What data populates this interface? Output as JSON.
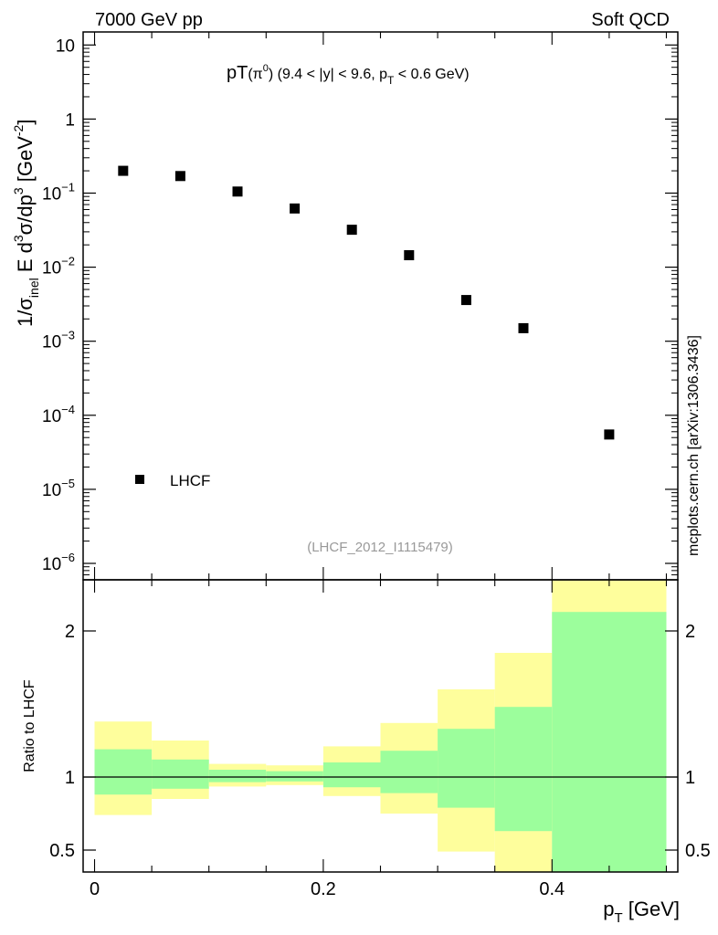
{
  "header": {
    "left": "7000 GeV pp",
    "right": "Soft QCD"
  },
  "title": {
    "main": "pT",
    "particle": "(π",
    "particle_sup": "0",
    "particle_close": ")",
    "cuts_a": "(9.4 < |y| < 9.6, p",
    "cuts_sub": "T",
    "cuts_b": " < 0.6 GeV)"
  },
  "y_axis_label": {
    "a": "1/σ",
    "sub": "inel",
    "b": " E d",
    "sup1": "3",
    "c": "σ/dp",
    "sup2": "3",
    "d": " [GeV",
    "sup3": "-2",
    "e": "]"
  },
  "ratio_axis_label": "Ratio to LHCF",
  "x_axis_label": {
    "main": "p",
    "sub": "T",
    "unit": " [GeV]"
  },
  "side_label": "mcplots.cern.ch [arXiv:1306.3436]",
  "analysis_id": "(LHCF_2012_I1115479)",
  "legend": {
    "label": "LHCF"
  },
  "chart_data": [
    {
      "type": "scatter",
      "panel": "main",
      "y_scale": "log",
      "ylim": [
        6e-07,
        15
      ],
      "xlim": [
        -0.01,
        0.51
      ],
      "x": [
        0.025,
        0.075,
        0.125,
        0.175,
        0.225,
        0.275,
        0.325,
        0.375,
        0.45
      ],
      "series": [
        {
          "name": "LHCF",
          "values": [
            0.2,
            0.17,
            0.105,
            0.062,
            0.032,
            0.0145,
            0.0036,
            0.0015,
            5.5e-05
          ]
        }
      ],
      "y_ticks": [
        {
          "value": 1e-06,
          "base": "10",
          "exp": "−6"
        },
        {
          "value": 1e-05,
          "base": "10",
          "exp": "−5"
        },
        {
          "value": 0.0001,
          "base": "10",
          "exp": "−4"
        },
        {
          "value": 0.001,
          "base": "10",
          "exp": "−3"
        },
        {
          "value": 0.01,
          "base": "10",
          "exp": "−2"
        },
        {
          "value": 0.1,
          "base": "10",
          "exp": "−1"
        },
        {
          "value": 1,
          "base": "1",
          "exp": ""
        },
        {
          "value": 10,
          "base": "10",
          "exp": ""
        }
      ]
    },
    {
      "type": "area",
      "panel": "ratio",
      "ylim": [
        0.35,
        2.35
      ],
      "bin_edges": [
        0.0,
        0.05,
        0.1,
        0.15,
        0.2,
        0.25,
        0.3,
        0.35,
        0.4,
        0.5
      ],
      "stat_band": {
        "color": "#9cfe9c",
        "lo": [
          0.88,
          0.92,
          0.965,
          0.97,
          0.93,
          0.89,
          0.79,
          0.63,
          0.35
        ],
        "hi": [
          1.19,
          1.12,
          1.05,
          1.04,
          1.1,
          1.18,
          1.33,
          1.48,
          2.13
        ]
      },
      "total_band": {
        "color": "#fefe9c",
        "lo": [
          0.74,
          0.85,
          0.935,
          0.945,
          0.87,
          0.75,
          0.49,
          0.35,
          0.35
        ],
        "hi": [
          1.38,
          1.25,
          1.09,
          1.08,
          1.21,
          1.37,
          1.6,
          1.85,
          2.35
        ]
      },
      "reference": 1.0,
      "y_ticks": [
        "0.5",
        "1",
        "2"
      ],
      "y_tick_values": [
        0.5,
        1,
        2
      ],
      "x_ticks": [
        "0",
        "0.2",
        "0.4"
      ],
      "x_tick_values": [
        0,
        0.2,
        0.4
      ]
    }
  ]
}
